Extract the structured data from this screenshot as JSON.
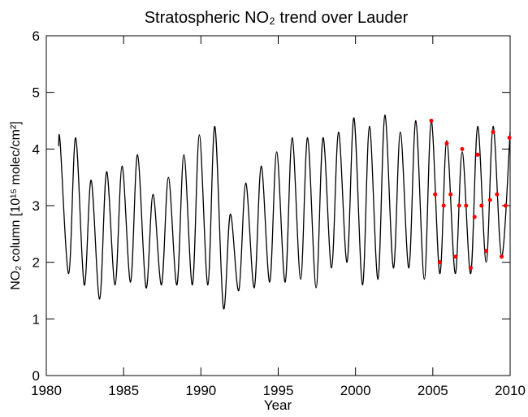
{
  "chart_data": {
    "type": "line",
    "title": "Stratospheric NO₂ trend over Lauder",
    "x_label": "Year",
    "y_label": "NO₂ column [10¹⁵ molec/cm²]",
    "xlim": [
      1980,
      2010
    ],
    "xticks": [
      1980,
      1985,
      1990,
      1995,
      2000,
      2005,
      2010
    ],
    "ylim": [
      0,
      6
    ],
    "yticks": [
      0,
      1,
      2,
      3,
      4,
      5,
      6
    ],
    "grid": false,
    "series": [
      {
        "color": "#000000",
        "line": true,
        "x": [
          1980.8,
          1980.9,
          1981.45,
          1981.9,
          1982.45,
          1982.9,
          1983.45,
          1983.9,
          1984.45,
          1984.9,
          1985.45,
          1985.9,
          1986.45,
          1986.9,
          1987.45,
          1987.9,
          1988.45,
          1988.9,
          1989.45,
          1989.9,
          1990.45,
          1990.9,
          1991.45,
          1991.9,
          1992.45,
          1992.9,
          1993.45,
          1993.9,
          1994.45,
          1994.9,
          1995.45,
          1995.9,
          1996.45,
          1996.9,
          1997.45,
          1997.9,
          1998.45,
          1998.9,
          1999.45,
          1999.9,
          2000.45,
          2000.9,
          2001.45,
          2001.9,
          2002.45,
          2002.9,
          2003.45,
          2003.9,
          2004.45,
          2004.9,
          2005.45,
          2005.9,
          2006.45,
          2006.9,
          2007.45,
          2007.9,
          2008.45,
          2008.9,
          2009.45,
          2010.0
        ],
        "values": [
          4.05,
          4.1,
          1.8,
          4.2,
          1.6,
          3.45,
          1.35,
          3.6,
          1.6,
          3.7,
          1.65,
          3.9,
          1.55,
          3.2,
          1.6,
          3.5,
          1.6,
          3.9,
          1.6,
          4.25,
          1.6,
          4.4,
          1.2,
          2.85,
          1.5,
          3.4,
          1.55,
          3.7,
          1.65,
          3.95,
          1.65,
          4.2,
          1.7,
          4.2,
          1.55,
          4.2,
          1.9,
          4.3,
          2.0,
          4.55,
          1.6,
          4.4,
          1.7,
          4.6,
          1.9,
          4.3,
          1.9,
          4.5,
          1.7,
          4.5,
          1.8,
          4.15,
          1.8,
          3.95,
          1.8,
          4.4,
          2.0,
          4.4,
          2.1,
          4.3
        ]
      },
      {
        "color": "#ff0000",
        "line": false,
        "x": [
          2004.9,
          2005.15,
          2005.45,
          2005.7,
          2005.9,
          2006.15,
          2006.45,
          2006.7,
          2006.9,
          2007.15,
          2007.45,
          2007.7,
          2007.9,
          2008.15,
          2008.45,
          2008.7,
          2008.9,
          2009.15,
          2009.45,
          2009.7,
          2009.95
        ],
        "values": [
          4.5,
          3.2,
          2.0,
          3.0,
          4.1,
          3.2,
          2.1,
          3.0,
          4.0,
          3.0,
          1.9,
          2.8,
          3.9,
          3.0,
          2.2,
          3.1,
          4.3,
          3.2,
          2.1,
          3.0,
          4.2
        ]
      }
    ]
  }
}
